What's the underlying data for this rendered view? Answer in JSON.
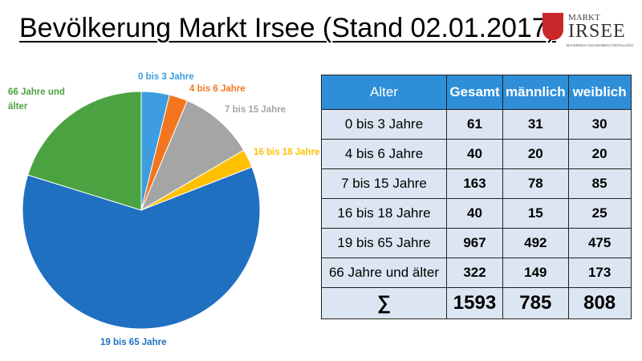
{
  "title": "Bevölkerung Markt Irsee (Stand 02.01.2017)",
  "logo": {
    "top": "MARKT",
    "name": "IRSEE",
    "sub": "BAYERISCH SCHWABEN | OSTALLGÄU"
  },
  "chart_data": {
    "type": "pie",
    "categories": [
      "0 bis 3 Jahre",
      "4 bis 6 Jahre",
      "7 bis 15 Jahre",
      "16 bis 18 Jahre",
      "19 bis 65 Jahre",
      "66 Jahre und älter"
    ],
    "values": [
      61,
      40,
      163,
      40,
      967,
      322
    ],
    "colors": [
      "#3d9de0",
      "#f4751f",
      "#a5a5a5",
      "#ffc000",
      "#1f70c1",
      "#4aa340"
    ]
  },
  "table": {
    "header": [
      "Alter",
      "Gesamt",
      "männlich",
      "weiblich"
    ],
    "rows": [
      [
        "0 bis 3 Jahre",
        61,
        31,
        30
      ],
      [
        "4 bis 6 Jahre",
        40,
        20,
        20
      ],
      [
        "7 bis 15 Jahre",
        163,
        78,
        85
      ],
      [
        "16 bis 18 Jahre",
        40,
        15,
        25
      ],
      [
        "19 bis 65 Jahre",
        967,
        492,
        475
      ],
      [
        "66 Jahre und älter",
        322,
        149,
        173
      ]
    ],
    "total": [
      "∑",
      1593,
      785,
      808
    ]
  }
}
